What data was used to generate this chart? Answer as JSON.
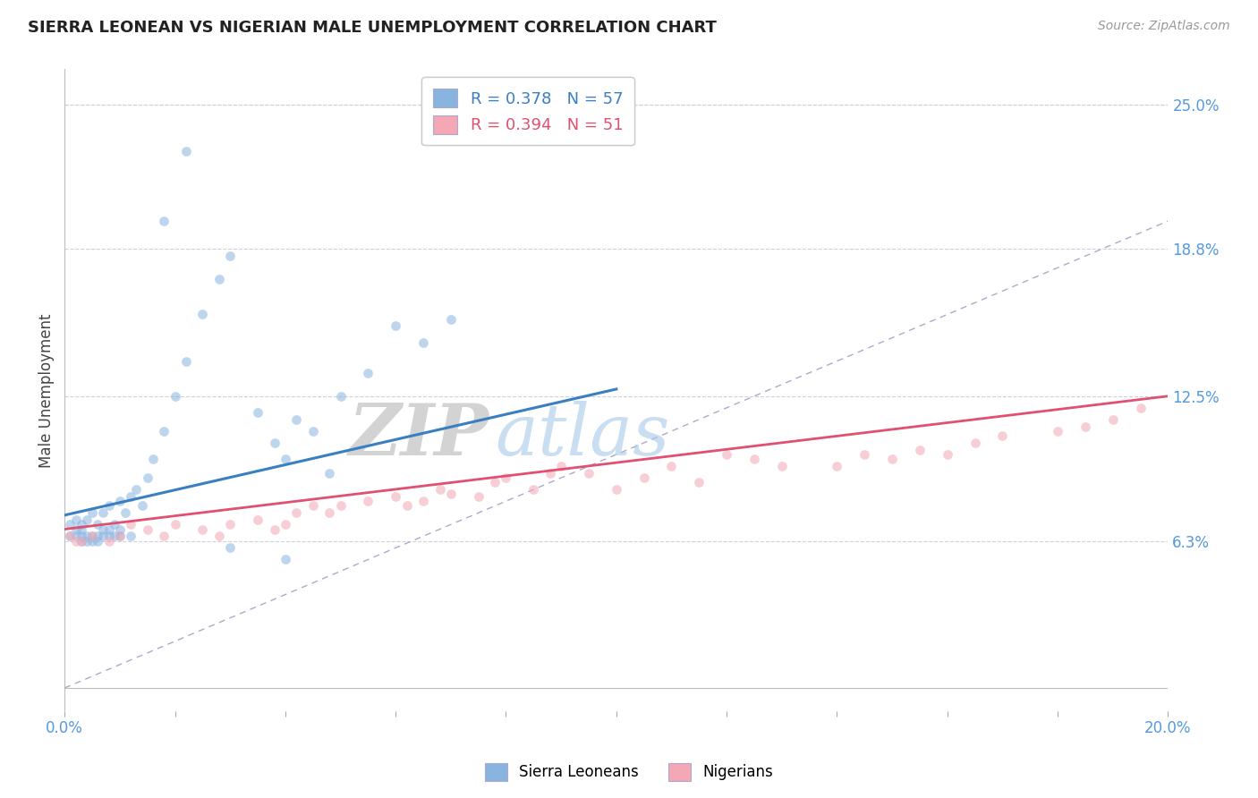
{
  "title": "SIERRA LEONEAN VS NIGERIAN MALE UNEMPLOYMENT CORRELATION CHART",
  "source": "Source: ZipAtlas.com",
  "ylabel": "Male Unemployment",
  "xlim": [
    0.0,
    0.2
  ],
  "ylim": [
    -0.01,
    0.265
  ],
  "plot_ylim": [
    0.0,
    0.25
  ],
  "ytick_vals": [
    0.063,
    0.125,
    0.188,
    0.25
  ],
  "ytick_labels": [
    "6.3%",
    "12.5%",
    "18.8%",
    "25.0%"
  ],
  "xtick_vals": [
    0.0,
    0.02,
    0.04,
    0.06,
    0.08,
    0.1,
    0.12,
    0.14,
    0.16,
    0.18,
    0.2
  ],
  "xtick_labels": [
    "0.0%",
    "",
    "",
    "",
    "",
    "",
    "",
    "",
    "",
    "",
    "20.0%"
  ],
  "sierra_leone_color": "#89b4e0",
  "nigeria_color": "#f4a7b5",
  "sierra_leone_line_color": "#3a7fc1",
  "nigeria_line_color": "#e05070",
  "ref_line_color": "#aaaacc",
  "background_color": "#ffffff",
  "watermark": "ZIPatlas",
  "sierra_leone_R": 0.378,
  "sierra_leone_N": 57,
  "nigeria_R": 0.394,
  "nigeria_N": 51,
  "sl_trend_x": [
    0.0,
    0.1
  ],
  "sl_trend_y": [
    0.074,
    0.128
  ],
  "ng_trend_x": [
    0.0,
    0.2
  ],
  "ng_trend_y": [
    0.068,
    0.125
  ],
  "ref_line_x": [
    0.0,
    0.25
  ],
  "ref_line_y": [
    0.0,
    0.25
  ],
  "sl_x": [
    0.001,
    0.001,
    0.002,
    0.002,
    0.002,
    0.003,
    0.003,
    0.003,
    0.003,
    0.004,
    0.004,
    0.004,
    0.005,
    0.005,
    0.005,
    0.006,
    0.006,
    0.006,
    0.007,
    0.007,
    0.007,
    0.008,
    0.008,
    0.008,
    0.009,
    0.009,
    0.01,
    0.01,
    0.01,
    0.011,
    0.012,
    0.012,
    0.013,
    0.014,
    0.015,
    0.016,
    0.018,
    0.02,
    0.022,
    0.025,
    0.028,
    0.03,
    0.035,
    0.038,
    0.04,
    0.042,
    0.045,
    0.048,
    0.05,
    0.055,
    0.06,
    0.065,
    0.07,
    0.018,
    0.022,
    0.03,
    0.04
  ],
  "sl_y": [
    0.065,
    0.07,
    0.065,
    0.068,
    0.072,
    0.063,
    0.065,
    0.068,
    0.07,
    0.063,
    0.065,
    0.072,
    0.063,
    0.065,
    0.075,
    0.063,
    0.065,
    0.07,
    0.065,
    0.068,
    0.075,
    0.065,
    0.068,
    0.078,
    0.065,
    0.07,
    0.065,
    0.068,
    0.08,
    0.075,
    0.065,
    0.082,
    0.085,
    0.078,
    0.09,
    0.098,
    0.11,
    0.125,
    0.14,
    0.16,
    0.175,
    0.185,
    0.118,
    0.105,
    0.098,
    0.115,
    0.11,
    0.092,
    0.125,
    0.135,
    0.155,
    0.148,
    0.158,
    0.2,
    0.23,
    0.06,
    0.055
  ],
  "ng_x": [
    0.001,
    0.002,
    0.003,
    0.005,
    0.008,
    0.01,
    0.012,
    0.015,
    0.018,
    0.02,
    0.025,
    0.028,
    0.03,
    0.035,
    0.038,
    0.04,
    0.042,
    0.045,
    0.048,
    0.05,
    0.055,
    0.06,
    0.062,
    0.065,
    0.068,
    0.07,
    0.075,
    0.078,
    0.08,
    0.085,
    0.088,
    0.09,
    0.095,
    0.1,
    0.105,
    0.11,
    0.115,
    0.12,
    0.125,
    0.13,
    0.14,
    0.145,
    0.15,
    0.155,
    0.16,
    0.165,
    0.17,
    0.18,
    0.185,
    0.19,
    0.195
  ],
  "ng_y": [
    0.065,
    0.063,
    0.063,
    0.065,
    0.063,
    0.065,
    0.07,
    0.068,
    0.065,
    0.07,
    0.068,
    0.065,
    0.07,
    0.072,
    0.068,
    0.07,
    0.075,
    0.078,
    0.075,
    0.078,
    0.08,
    0.082,
    0.078,
    0.08,
    0.085,
    0.083,
    0.082,
    0.088,
    0.09,
    0.085,
    0.092,
    0.095,
    0.092,
    0.085,
    0.09,
    0.095,
    0.088,
    0.1,
    0.098,
    0.095,
    0.095,
    0.1,
    0.098,
    0.102,
    0.1,
    0.105,
    0.108,
    0.11,
    0.112,
    0.115,
    0.12
  ]
}
